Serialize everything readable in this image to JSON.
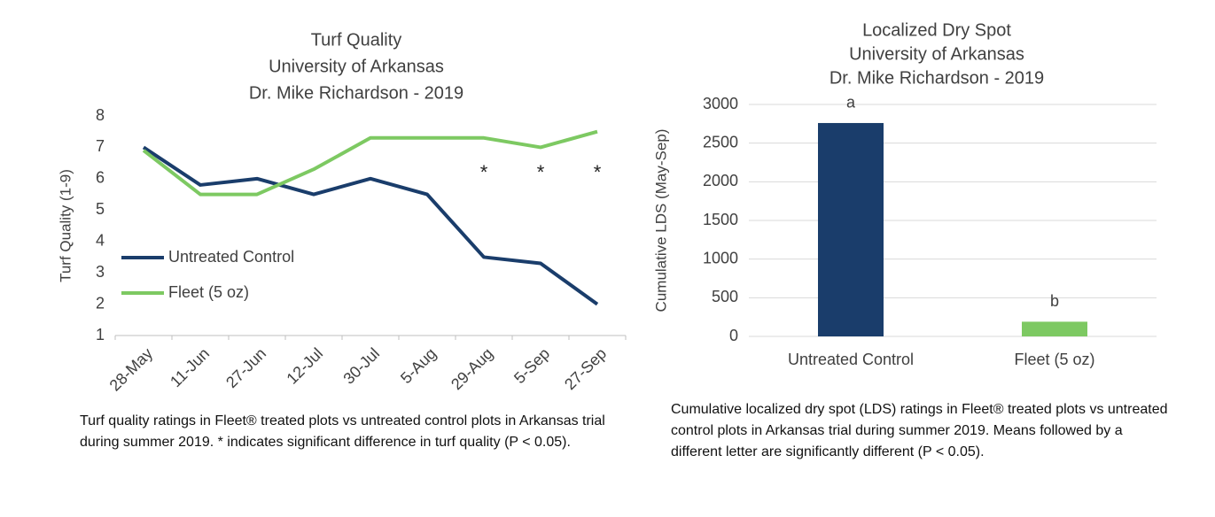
{
  "chart_data": [
    {
      "type": "line",
      "title": [
        "Turf Quality",
        "University of Arkansas",
        "Dr. Mike Richardson - 2019"
      ],
      "y_label": "Turf Quality (1-9)",
      "categories": [
        "28-May",
        "11-Jun",
        "27-Jun",
        "12-Jul",
        "30-Jul",
        "5-Aug",
        "29-Aug",
        "5-Sep",
        "27-Sep"
      ],
      "series": [
        {
          "name": "Untreated Control",
          "color": "#1a3d6b",
          "values": [
            7.0,
            5.8,
            6.0,
            5.5,
            6.0,
            5.5,
            3.5,
            3.3,
            2.0
          ]
        },
        {
          "name": "Fleet (5 oz)",
          "color": "#7dc962",
          "values": [
            6.9,
            5.5,
            5.5,
            6.3,
            7.3,
            7.3,
            7.3,
            7.0,
            7.5
          ]
        }
      ],
      "annotations": [
        {
          "text": "*",
          "x": "29-Aug"
        },
        {
          "text": "*",
          "x": "5-Sep"
        },
        {
          "text": "*",
          "x": "27-Sep"
        }
      ],
      "ylim": [
        1,
        8
      ],
      "yticks": [
        1,
        2,
        3,
        4,
        5,
        6,
        7,
        8
      ],
      "grid": false,
      "legend": "left",
      "caption": "Turf quality ratings in Fleet® treated plots vs untreated control plots in Arkansas trial during summer 2019. * indicates significant difference in turf quality (P < 0.05)."
    },
    {
      "type": "bar",
      "title": [
        "Localized Dry Spot",
        "University of Arkansas",
        "Dr. Mike Richardson - 2019"
      ],
      "y_label": "Cumulative LDS (May-Sep)",
      "categories": [
        "Untreated Control",
        "Fleet (5 oz)"
      ],
      "values": [
        2760,
        190
      ],
      "colors": [
        "#1a3d6b",
        "#7dc962"
      ],
      "letters": [
        "a",
        "b"
      ],
      "ylim": [
        0,
        3000
      ],
      "yticks": [
        0,
        500,
        1000,
        1500,
        2000,
        2500,
        3000
      ],
      "grid": true,
      "caption": "Cumulative localized dry spot (LDS) ratings in Fleet® treated plots vs untreated control plots in Arkansas trial during summer 2019. Means followed by a different letter are significantly different (P < 0.05)."
    }
  ]
}
